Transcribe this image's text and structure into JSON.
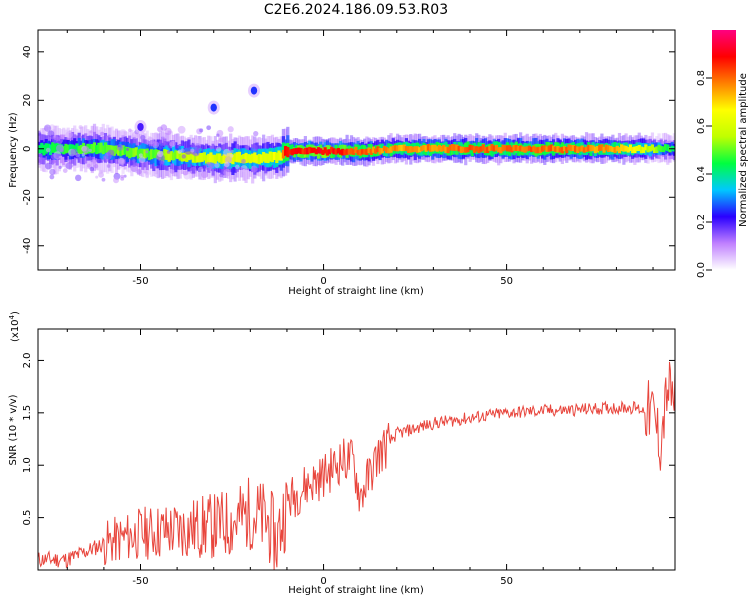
{
  "title": "C2E6.2024.186.09.53.R03",
  "colors": {
    "snr_line": "#e8453c",
    "axis": "#000000"
  },
  "chart_data": [
    {
      "type": "heatmap",
      "name": "spectrogram",
      "xlabel": "Height of straight line (km)",
      "ylabel": "Frequency (Hz)",
      "xlim": [
        -78,
        96
      ],
      "ylim": [
        -50,
        49
      ],
      "xticks": [
        -50,
        0,
        50
      ],
      "yticks": [
        -40,
        -20,
        0,
        20,
        40
      ],
      "colorbar": {
        "label": "Normalized spectral amplitude",
        "range": [
          0.0,
          1.0
        ],
        "ticks": [
          "0.0",
          "0.2",
          "0.4",
          "0.6",
          "0.8"
        ],
        "colormap": [
          "#ffffff",
          "#c080ff",
          "#2a00ff",
          "#00c8ff",
          "#00ff40",
          "#c0ff00",
          "#ffff00",
          "#ff8000",
          "#ff0000",
          "#ff0080"
        ]
      },
      "ridge": {
        "x": [
          -78,
          -70,
          -60,
          -50,
          -40,
          -30,
          -20,
          -12,
          -11,
          0,
          10,
          20,
          40,
          60,
          80,
          90,
          96
        ],
        "freq": [
          0,
          0,
          0,
          -2,
          -3,
          -4,
          -4,
          -3,
          -1,
          -1,
          -1,
          0,
          0,
          0,
          0,
          0,
          0
        ],
        "amplitude": [
          0.4,
          0.45,
          0.5,
          0.5,
          0.55,
          0.6,
          0.6,
          0.65,
          0.85,
          0.9,
          0.8,
          0.75,
          0.8,
          0.8,
          0.75,
          0.55,
          0.4
        ]
      },
      "blobs": [
        {
          "x": -30,
          "freq": 17,
          "amplitude": 0.25
        },
        {
          "x": -19,
          "freq": 24,
          "amplitude": 0.25
        },
        {
          "x": -50,
          "freq": 9,
          "amplitude": 0.2
        }
      ]
    },
    {
      "type": "line",
      "name": "snr",
      "xlabel": "Height of straight line (km)",
      "ylabel": "SNR (10 * v/v)",
      "y_multiplier": "(x10",
      "y_multiplier_exp": "4",
      "y_multiplier_close": ")",
      "xlim": [
        -78,
        96
      ],
      "ylim": [
        0,
        2.3
      ],
      "xticks": [
        -50,
        0,
        50
      ],
      "yticks": [
        0.5,
        1.0,
        1.5,
        2.0
      ],
      "x": [
        -78,
        -70,
        -60,
        -50,
        -40,
        -30,
        -25,
        -20,
        -15,
        -13,
        -10,
        -5,
        0,
        5,
        8,
        10,
        15,
        20,
        30,
        40,
        50,
        60,
        70,
        80,
        85,
        90,
        92,
        94,
        96
      ],
      "y": [
        0.1,
        0.1,
        0.25,
        0.35,
        0.38,
        0.42,
        0.45,
        0.55,
        0.45,
        0.25,
        0.65,
        0.8,
        0.9,
        1.05,
        1.05,
        0.7,
        1.1,
        1.3,
        1.4,
        1.45,
        1.5,
        1.52,
        1.53,
        1.55,
        1.55,
        1.5,
        1.2,
        1.75,
        1.6
      ]
    }
  ]
}
